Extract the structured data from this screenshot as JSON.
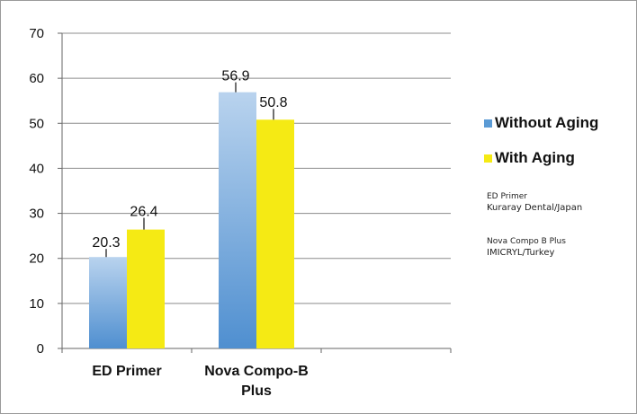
{
  "chart_data": {
    "type": "bar",
    "categories": [
      [
        "ED Primer"
      ],
      [
        "Nova Compo-B",
        "Plus"
      ]
    ],
    "series": [
      {
        "name": "Without Aging",
        "values": [
          20.3,
          56.9
        ],
        "color_top": "#b9d3ee",
        "color_bottom": "#4f8fd0"
      },
      {
        "name": "With Aging",
        "values": [
          26.4,
          50.8
        ],
        "color": "#f5ea14"
      }
    ],
    "data_labels": [
      [
        "20.3",
        "56.9"
      ],
      [
        "26.4",
        "50.8"
      ]
    ],
    "error_bars": [
      [
        1.8,
        2.2
      ],
      [
        2.6,
        2.4
      ]
    ],
    "y_ticks": [
      "0",
      "10",
      "20",
      "30",
      "40",
      "50",
      "60",
      "70"
    ],
    "ylim": [
      0,
      70
    ],
    "grid": true,
    "legend_position": "right"
  },
  "notes": [
    {
      "line1": "ED Primer",
      "line2": "Kuraray Dental/Japan"
    },
    {
      "line1": "Nova Compo B Plus",
      "line2": "IMICRYL/Turkey"
    }
  ]
}
